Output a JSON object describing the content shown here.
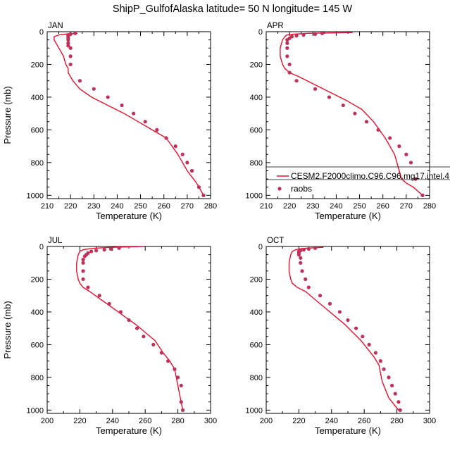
{
  "figure": {
    "title": "ShipP_GulfofAlaska  latitude= 50 N longitude= 145 W"
  },
  "colors": {
    "model_line": "#e8112d",
    "obs_marker": "#c0305a",
    "axes": "#000000"
  },
  "legend": {
    "model_label": "CESM2.F2000climo.C96.C96.mg17.intel.4",
    "obs_label": "raobs",
    "placement": "lower-right of APR panel"
  },
  "chart_data": [
    {
      "type": "line",
      "panel": "JAN",
      "title": "JAN",
      "xlabel": "Temperature (K)",
      "ylabel": "Pressure (mb)",
      "xlim": [
        210,
        280
      ],
      "ylim": [
        1020,
        0
      ],
      "xticks": [
        210,
        220,
        230,
        240,
        250,
        260,
        270,
        280
      ],
      "yticks": [
        0,
        200,
        400,
        600,
        800,
        1000
      ],
      "grid": false,
      "series": [
        {
          "kind": "line",
          "x": [
            223,
            218,
            215,
            213,
            213,
            215,
            217,
            218,
            219,
            219,
            220,
            221,
            224,
            229,
            236,
            243,
            249,
            255,
            261,
            266,
            270,
            274,
            277
          ],
          "y": [
            10,
            15,
            20,
            30,
            50,
            100,
            150,
            200,
            225,
            250,
            275,
            300,
            350,
            400,
            450,
            500,
            550,
            600,
            650,
            750,
            850,
            925,
            1000
          ]
        },
        {
          "kind": "scatter",
          "x": [
            222,
            220,
            219,
            219,
            219,
            219,
            219,
            219,
            220,
            220,
            220,
            224,
            230,
            236,
            242,
            247,
            252,
            257,
            261,
            265,
            268,
            270,
            272,
            275,
            277
          ],
          "y": [
            10,
            15,
            20,
            30,
            40,
            50,
            70,
            85,
            100,
            150,
            200,
            300,
            350,
            400,
            450,
            500,
            550,
            600,
            650,
            700,
            750,
            800,
            850,
            950,
            1000
          ]
        }
      ]
    },
    {
      "type": "line",
      "panel": "APR",
      "title": "APR",
      "xlabel": "Temperature (K)",
      "ylabel": "",
      "xlim": [
        210,
        280
      ],
      "ylim": [
        1020,
        0
      ],
      "xticks": [
        210,
        220,
        230,
        240,
        250,
        260,
        270,
        280
      ],
      "yticks": [
        0,
        200,
        400,
        600,
        800,
        1000
      ],
      "grid": false,
      "series": [
        {
          "kind": "line",
          "x": [
            247,
            228,
            222,
            219,
            218,
            217,
            216,
            216,
            217,
            218,
            220,
            224,
            231,
            238,
            245,
            251,
            256,
            261,
            265,
            267,
            268,
            270,
            273,
            277
          ],
          "y": [
            5,
            10,
            15,
            20,
            30,
            50,
            100,
            150,
            200,
            225,
            250,
            275,
            325,
            375,
            425,
            475,
            550,
            650,
            750,
            850,
            900,
            925,
            950,
            1000
          ]
        },
        {
          "kind": "scatter",
          "x": [
            234,
            231,
            226,
            223,
            221,
            220,
            219,
            219,
            219,
            219,
            220,
            220,
            223,
            231,
            237,
            243,
            248,
            253,
            258,
            263,
            267,
            270,
            272,
            274,
            277
          ],
          "y": [
            10,
            15,
            20,
            25,
            30,
            40,
            50,
            70,
            100,
            150,
            200,
            250,
            300,
            350,
            400,
            450,
            500,
            550,
            600,
            650,
            700,
            750,
            800,
            900,
            1000
          ]
        }
      ]
    },
    {
      "type": "line",
      "panel": "JUL",
      "title": "JUL",
      "xlabel": "Temperature (K)",
      "ylabel": "Pressure (mb)",
      "xlim": [
        200,
        300
      ],
      "ylim": [
        1020,
        0
      ],
      "xticks": [
        200,
        220,
        240,
        260,
        280,
        300
      ],
      "yticks": [
        0,
        200,
        400,
        600,
        800,
        1000
      ],
      "grid": false,
      "series": [
        {
          "kind": "line",
          "x": [
            259,
            240,
            230,
            225,
            222,
            220,
            219,
            218,
            218,
            219,
            220,
            222,
            226,
            233,
            240,
            247,
            254,
            260,
            266,
            271,
            275,
            278,
            280,
            282,
            283
          ],
          "y": [
            0,
            5,
            10,
            15,
            20,
            30,
            50,
            100,
            150,
            200,
            225,
            250,
            275,
            325,
            375,
            425,
            475,
            525,
            575,
            650,
            700,
            750,
            850,
            950,
            1000
          ]
        },
        {
          "kind": "scatter",
          "x": [
            244,
            239,
            235,
            230,
            227,
            225,
            224,
            223,
            222,
            222,
            222,
            222,
            225,
            232,
            238,
            245,
            250,
            255,
            259,
            265,
            270,
            274,
            278,
            280,
            282,
            282,
            283
          ],
          "y": [
            10,
            15,
            20,
            25,
            30,
            40,
            50,
            60,
            80,
            100,
            150,
            200,
            250,
            300,
            350,
            400,
            450,
            500,
            550,
            600,
            650,
            700,
            750,
            800,
            850,
            950,
            1000
          ]
        }
      ]
    },
    {
      "type": "line",
      "panel": "OCT",
      "title": "OCT",
      "xlabel": "Temperature (K)",
      "ylabel": "",
      "xlim": [
        200,
        300
      ],
      "ylim": [
        1020,
        0
      ],
      "xticks": [
        200,
        220,
        240,
        260,
        280,
        300
      ],
      "yticks": [
        0,
        200,
        400,
        600,
        800,
        1000
      ],
      "grid": false,
      "series": [
        {
          "kind": "line",
          "x": [
            235,
            225,
            220,
            218,
            216,
            215,
            214,
            214,
            215,
            216,
            219,
            224,
            230,
            236,
            242,
            248,
            253,
            258,
            262,
            266,
            269,
            270,
            271,
            273,
            275,
            277,
            279,
            281
          ],
          "y": [
            5,
            10,
            15,
            20,
            30,
            50,
            100,
            150,
            200,
            225,
            250,
            275,
            325,
            375,
            425,
            475,
            525,
            575,
            625,
            675,
            725,
            775,
            825,
            875,
            925,
            950,
            975,
            1000
          ]
        },
        {
          "kind": "scatter",
          "x": [
            230,
            226,
            223,
            221,
            220,
            220,
            220,
            221,
            221,
            222,
            224,
            226,
            233,
            239,
            245,
            250,
            255,
            259,
            263,
            267,
            270,
            272,
            275,
            277,
            279,
            281,
            282
          ],
          "y": [
            10,
            15,
            20,
            25,
            30,
            40,
            50,
            70,
            100,
            150,
            200,
            250,
            300,
            350,
            400,
            450,
            500,
            550,
            600,
            650,
            700,
            750,
            800,
            850,
            900,
            950,
            1000
          ]
        }
      ]
    }
  ]
}
